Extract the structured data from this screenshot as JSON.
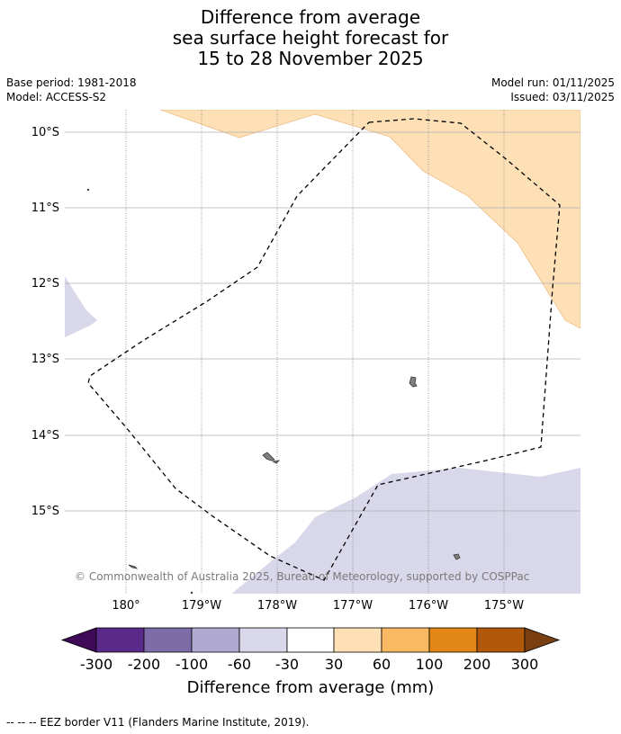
{
  "title": {
    "line1": "Difference from average",
    "line2": "sea surface height forecast for",
    "line3": "15 to 28 November 2025"
  },
  "info": {
    "base_period": "Base period: 1981-2018",
    "model": "Model: ACCESS-S2",
    "model_run": "Model run: 01/11/2025",
    "issued": "Issued: 03/11/2025"
  },
  "map": {
    "lat_labels": [
      "10°S",
      "11°S",
      "12°S",
      "13°S",
      "14°S",
      "15°S"
    ],
    "lon_labels": [
      "180°",
      "179°W",
      "178°W",
      "177°W",
      "176°W",
      "175°W"
    ],
    "credit": "© Commonwealth of Australia 2025, Bureau of Meteorology, supported by COSPPac",
    "colors": {
      "positive_30_60": "#fde0b6",
      "negative_30_60": "#d8d8ea",
      "land": "#808080",
      "gridline": "#b0b0b0",
      "eez_border": "#000000"
    }
  },
  "colorbar": {
    "tick_labels": [
      "-300",
      "-200",
      "-100",
      "-60",
      "-30",
      "30",
      "60",
      "100",
      "200",
      "300"
    ],
    "colors": [
      "#3f0a57",
      "#5a2a8a",
      "#7d6ca8",
      "#b0a9d0",
      "#d8d8ea",
      "#ffffff",
      "#fde0b6",
      "#f9b862",
      "#e28717",
      "#b1580b",
      "#7a3f10"
    ],
    "title": "Difference from average (mm)"
  },
  "footnote": "--  --  -- EEZ border V11 (Flanders Marine Institute, 2019)."
}
